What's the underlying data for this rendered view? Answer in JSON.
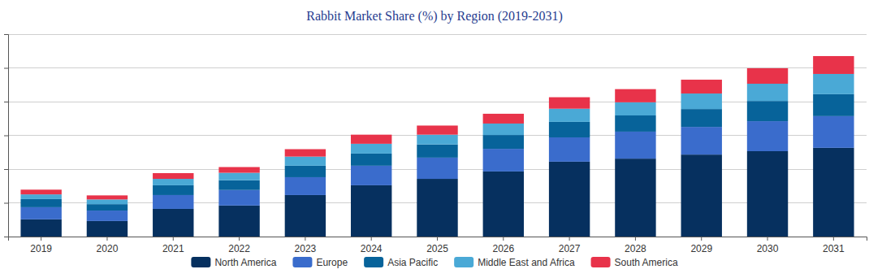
{
  "chart_data": {
    "type": "bar",
    "title": "Rabbit Market Share (%) by Region (2019-2031)",
    "stacked": true,
    "grid": true,
    "tick_labels": "x",
    "legend": "bottom",
    "categories": [
      "2019",
      "2020",
      "2021",
      "2022",
      "2023",
      "2024",
      "2025",
      "2026",
      "2027",
      "2028",
      "2029",
      "2030",
      "2031"
    ],
    "ylim": [
      0,
      6
    ],
    "yticks": [
      0,
      1,
      2,
      3,
      4,
      5,
      6
    ],
    "series": [
      {
        "name": "North America",
        "color": "#06305f",
        "values": [
          0.51,
          0.46,
          0.82,
          0.92,
          1.23,
          1.52,
          1.71,
          1.93,
          2.22,
          2.31,
          2.43,
          2.53,
          2.63
        ]
      },
      {
        "name": "Europe",
        "color": "#3a6ccc",
        "values": [
          0.36,
          0.31,
          0.41,
          0.46,
          0.53,
          0.58,
          0.63,
          0.67,
          0.72,
          0.8,
          0.82,
          0.89,
          0.94
        ]
      },
      {
        "name": "Asia Pacific",
        "color": "#07639a",
        "values": [
          0.24,
          0.19,
          0.29,
          0.29,
          0.34,
          0.36,
          0.39,
          0.41,
          0.46,
          0.48,
          0.53,
          0.6,
          0.65
        ]
      },
      {
        "name": "Middle East and Africa",
        "color": "#4aa9d6",
        "values": [
          0.14,
          0.14,
          0.19,
          0.22,
          0.27,
          0.29,
          0.29,
          0.34,
          0.39,
          0.39,
          0.46,
          0.51,
          0.6
        ]
      },
      {
        "name": "South America",
        "color": "#e8334a",
        "values": [
          0.14,
          0.12,
          0.17,
          0.17,
          0.22,
          0.27,
          0.27,
          0.29,
          0.34,
          0.39,
          0.41,
          0.46,
          0.53
        ]
      }
    ]
  }
}
